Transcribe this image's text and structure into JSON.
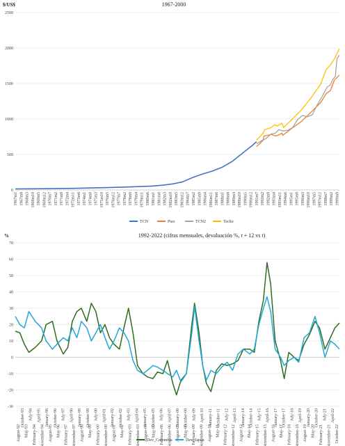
{
  "colors": {
    "tcn": "#4472C4",
    "piso": "#ED7D31",
    "tcn2": "#A5A5A5",
    "techo": "#FFC000",
    "colombia": "#2E6B1E",
    "japan": "#1FA8D8"
  },
  "chart_data": [
    {
      "type": "line",
      "unit": "$/US$",
      "title": "1967-2000",
      "ylim": [
        0,
        2500
      ],
      "yticks": [
        0,
        500,
        1000,
        1500,
        2000,
        2500
      ],
      "grid": true,
      "legend_position": "bottom",
      "x_start": "1967m1",
      "x_end": "1999m12",
      "xtick_labels": [
        "1967m1",
        "1967m8",
        "1968m3",
        "1968m10",
        "1969m5",
        "1969m12",
        "1970m7",
        "1971m2",
        "1971m9",
        "1972m4",
        "1972m11",
        "1973m6",
        "1974m1",
        "1974m8",
        "1975m3",
        "1975m10",
        "1976m5",
        "1976m12",
        "1977m7",
        "1978m2",
        "1978m9",
        "1979m4",
        "1979m11",
        "1980m6",
        "1981m1",
        "1981m8",
        "1982m3",
        "1982m10",
        "1983m5",
        "1983m12",
        "1984m7",
        "1985m2",
        "1985m9",
        "1986m4",
        "1986m11",
        "1987m6",
        "1988m1",
        "1988m8",
        "1989m3",
        "1989m10",
        "1990m5",
        "1990m12",
        "1991m7",
        "1992m2",
        "1992m9",
        "1993m4",
        "1993m11",
        "1994m6",
        "1995m1",
        "1995m8",
        "1996m3",
        "1996m10",
        "1997m5",
        "1997m12",
        "1998m7",
        "1999m2",
        "1999m9"
      ],
      "series": [
        {
          "name": "TCN",
          "color": "#4472C4",
          "points": [
            [
              "1967m1",
              15
            ],
            [
              "1970m1",
              18
            ],
            [
              "1973m1",
              23
            ],
            [
              "1976m1",
              32
            ],
            [
              "1978m1",
              40
            ],
            [
              "1980m1",
              50
            ],
            [
              "1981m1",
              56
            ],
            [
              "1982m1",
              68
            ],
            [
              "1983m1",
              85
            ],
            [
              "1984m1",
              115
            ],
            [
              "1985m1",
              175
            ],
            [
              "1986m1",
              225
            ],
            [
              "1987m1",
              265
            ],
            [
              "1988m1",
              320
            ],
            [
              "1989m1",
              400
            ],
            [
              "1990m1",
              510
            ],
            [
              "1991m1",
              620
            ],
            [
              "1991m7",
              680
            ]
          ]
        },
        {
          "name": "Piso",
          "color": "#ED7D31",
          "points": [
            [
              "1991m7",
              610
            ],
            [
              "1992m3",
              700
            ],
            [
              "1992m4",
              760
            ],
            [
              "1993m1",
              780
            ],
            [
              "1993m7",
              760
            ],
            [
              "1994m2",
              800
            ],
            [
              "1994m3",
              770
            ],
            [
              "1995m1",
              860
            ],
            [
              "1996m1",
              960
            ],
            [
              "1997m1",
              1090
            ],
            [
              "1998m1",
              1230
            ],
            [
              "1998m8",
              1360
            ],
            [
              "1999m1",
              1400
            ],
            [
              "1999m6",
              1550
            ],
            [
              "1999m12",
              1620
            ]
          ]
        },
        {
          "name": "TCN2",
          "color": "#A5A5A5",
          "points": [
            [
              "1991m7",
              650
            ],
            [
              "1992m2",
              700
            ],
            [
              "1992m6",
              720
            ],
            [
              "1993m1",
              790
            ],
            [
              "1993m6",
              800
            ],
            [
              "1993m10",
              850
            ],
            [
              "1994m3",
              830
            ],
            [
              "1994m9",
              840
            ],
            [
              "1995m3",
              880
            ],
            [
              "1995m9",
              990
            ],
            [
              "1996m3",
              1050
            ],
            [
              "1996m9",
              1030
            ],
            [
              "1997m3",
              1060
            ],
            [
              "1997m9",
              1200
            ],
            [
              "1998m3",
              1320
            ],
            [
              "1998m9",
              1450
            ],
            [
              "1999m1",
              1480
            ],
            [
              "1999m4",
              1560
            ],
            [
              "1999m7",
              1600
            ],
            [
              "1999m9",
              1850
            ],
            [
              "1999m12",
              1900
            ]
          ]
        },
        {
          "name": "Techo",
          "color": "#FFC000",
          "points": [
            [
              "1991m7",
              700
            ],
            [
              "1992m3",
              800
            ],
            [
              "1992m5",
              850
            ],
            [
              "1993m1",
              880
            ],
            [
              "1993m5",
              920
            ],
            [
              "1993m8",
              900
            ],
            [
              "1994m2",
              940
            ],
            [
              "1994m4",
              880
            ],
            [
              "1995m1",
              980
            ],
            [
              "1996m1",
              1120
            ],
            [
              "1997m1",
              1290
            ],
            [
              "1998m1",
              1490
            ],
            [
              "1998m8",
              1700
            ],
            [
              "1999m1",
              1760
            ],
            [
              "1999m6",
              1850
            ],
            [
              "1999m12",
              1990
            ]
          ]
        }
      ]
    },
    {
      "type": "line",
      "unit": "%",
      "title": "1992-2022 (cifras mensuales, devaluación %,",
      "title_italic": "t",
      "title_mid": "+ 12  vs",
      "title_end": ")",
      "ylim": [
        -30,
        70
      ],
      "yticks": [
        -30,
        -20,
        -10,
        0,
        10,
        20,
        30,
        40,
        50,
        60,
        70
      ],
      "grid": true,
      "legend_position": "bottom",
      "x_start": "1992-08",
      "x_end": "2022-06",
      "xtick_labels": [
        "August-92",
        "May-93",
        "February-94",
        "November-94",
        "August-95",
        "May-96",
        "February-97",
        "November-97",
        "August-98",
        "May-99",
        "February-00",
        "November-00",
        "August-01",
        "May-02",
        "February-03",
        "November-03",
        "August-04",
        "May-05",
        "February-06",
        "November-06",
        "August-07",
        "May-08",
        "February-09",
        "November-09",
        "August-10",
        "May-11",
        "February-12",
        "November-12",
        "August-13",
        "May-14",
        "February-15",
        "November-15",
        "August-16",
        "May-17",
        "February-18",
        "November-18",
        "August-19",
        "May-20",
        "February-21",
        "November-21",
        "October-22"
      ],
      "xtick_labels_secondary": [
        "October-93",
        "July-94",
        "April-95",
        "January-96",
        "October-96",
        "July-97",
        "April-98",
        "January-99",
        "October-99",
        "July-00",
        "April-01",
        "January-02",
        "October-02",
        "July-03",
        "April-04",
        "January-05",
        "October-05",
        "July-06",
        "April-07",
        "January-08",
        "October-08",
        "July-09",
        "April-10",
        "January-11",
        "October-11",
        "July-12",
        "April-13",
        "January-14",
        "October-14",
        "July-15",
        "April-16",
        "January-17",
        "October-17",
        "July-18",
        "April-19",
        "January-20",
        "October-20",
        "July-21",
        "April-22"
      ],
      "series": [
        {
          "name": "Dev_Colombia",
          "color": "#2E6B1E",
          "points": [
            [
              "1992-08",
              16
            ],
            [
              "1993-01",
              15
            ],
            [
              "1993-06",
              8
            ],
            [
              "1993-11",
              3
            ],
            [
              "1994-06",
              6
            ],
            [
              "1995-01",
              10
            ],
            [
              "1995-06",
              20
            ],
            [
              "1996-01",
              22
            ],
            [
              "1996-06",
              10
            ],
            [
              "1997-01",
              2
            ],
            [
              "1997-06",
              6
            ],
            [
              "1997-11",
              22
            ],
            [
              "1998-04",
              28
            ],
            [
              "1998-09",
              30
            ],
            [
              "1999-03",
              22
            ],
            [
              "1999-08",
              33
            ],
            [
              "2000-01",
              28
            ],
            [
              "2000-06",
              15
            ],
            [
              "2000-11",
              20
            ],
            [
              "2001-04",
              12
            ],
            [
              "2001-09",
              8
            ],
            [
              "2002-03",
              5
            ],
            [
              "2002-08",
              18
            ],
            [
              "2003-01",
              30
            ],
            [
              "2003-06",
              15
            ],
            [
              "2003-11",
              -5
            ],
            [
              "2004-05",
              -10
            ],
            [
              "2004-10",
              -12
            ],
            [
              "2005-04",
              -13
            ],
            [
              "2005-09",
              -9
            ],
            [
              "2006-03",
              -10
            ],
            [
              "2006-08",
              -2
            ],
            [
              "2007-02",
              -16
            ],
            [
              "2007-06",
              -23
            ],
            [
              "2007-11",
              -14
            ],
            [
              "2008-05",
              -10
            ],
            [
              "2008-11",
              20
            ],
            [
              "2009-02",
              33
            ],
            [
              "2009-07",
              15
            ],
            [
              "2009-11",
              -5
            ],
            [
              "2010-03",
              -16
            ],
            [
              "2010-08",
              -21
            ],
            [
              "2011-02",
              -8
            ],
            [
              "2011-08",
              -4
            ],
            [
              "2012-02",
              -5
            ],
            [
              "2012-08",
              -4
            ],
            [
              "2013-02",
              -2
            ],
            [
              "2013-08",
              5
            ],
            [
              "2014-03",
              5
            ],
            [
              "2014-08",
              3
            ],
            [
              "2015-01",
              22
            ],
            [
              "2015-06",
              35
            ],
            [
              "2015-10",
              58
            ],
            [
              "2016-02",
              45
            ],
            [
              "2016-07",
              10
            ],
            [
              "2017-01",
              -2
            ],
            [
              "2017-05",
              -13
            ],
            [
              "2017-10",
              3
            ],
            [
              "2018-04",
              0
            ],
            [
              "2018-09",
              -2
            ],
            [
              "2019-03",
              8
            ],
            [
              "2019-09",
              14
            ],
            [
              "2020-03",
              22
            ],
            [
              "2020-08",
              18
            ],
            [
              "2021-02",
              5
            ],
            [
              "2021-08",
              12
            ],
            [
              "2022-01",
              18
            ],
            [
              "2022-06",
              21
            ]
          ]
        },
        {
          "name": "Dev_Japan",
          "color": "#1FA8D8",
          "points": [
            [
              "1992-08",
              25
            ],
            [
              "1993-01",
              20
            ],
            [
              "1993-06",
              18
            ],
            [
              "1993-11",
              28
            ],
            [
              "1994-06",
              22
            ],
            [
              "1995-01",
              18
            ],
            [
              "1995-06",
              10
            ],
            [
              "1996-01",
              5
            ],
            [
              "1996-06",
              8
            ],
            [
              "1997-01",
              12
            ],
            [
              "1997-06",
              10
            ],
            [
              "1997-11",
              18
            ],
            [
              "1998-04",
              12
            ],
            [
              "1998-09",
              22
            ],
            [
              "1999-03",
              18
            ],
            [
              "1999-08",
              10
            ],
            [
              "2000-01",
              15
            ],
            [
              "2000-06",
              20
            ],
            [
              "2000-11",
              12
            ],
            [
              "2001-04",
              5
            ],
            [
              "2001-09",
              10
            ],
            [
              "2002-03",
              18
            ],
            [
              "2002-08",
              15
            ],
            [
              "2003-01",
              10
            ],
            [
              "2003-06",
              -2
            ],
            [
              "2003-11",
              -8
            ],
            [
              "2004-05",
              -10
            ],
            [
              "2004-10",
              -8
            ],
            [
              "2005-04",
              -5
            ],
            [
              "2005-09",
              -6
            ],
            [
              "2006-03",
              -8
            ],
            [
              "2006-08",
              -10
            ],
            [
              "2007-02",
              -12
            ],
            [
              "2007-06",
              -8
            ],
            [
              "2007-11",
              -15
            ],
            [
              "2008-05",
              -10
            ],
            [
              "2008-11",
              15
            ],
            [
              "2009-02",
              31
            ],
            [
              "2009-07",
              10
            ],
            [
              "2009-11",
              -5
            ],
            [
              "2010-03",
              -14
            ],
            [
              "2010-08",
              -8
            ],
            [
              "2011-02",
              -10
            ],
            [
              "2011-08",
              -6
            ],
            [
              "2012-02",
              -3
            ],
            [
              "2012-08",
              -8
            ],
            [
              "2013-02",
              2
            ],
            [
              "2013-08",
              5
            ],
            [
              "2014-03",
              2
            ],
            [
              "2014-08",
              5
            ],
            [
              "2015-01",
              20
            ],
            [
              "2015-06",
              30
            ],
            [
              "2015-10",
              37
            ],
            [
              "2016-02",
              28
            ],
            [
              "2016-07",
              5
            ],
            [
              "2017-01",
              0
            ],
            [
              "2017-05",
              -5
            ],
            [
              "2017-10",
              -2
            ],
            [
              "2018-04",
              0
            ],
            [
              "2018-09",
              -3
            ],
            [
              "2019-03",
              12
            ],
            [
              "2019-09",
              15
            ],
            [
              "2020-03",
              25
            ],
            [
              "2020-08",
              15
            ],
            [
              "2021-02",
              0
            ],
            [
              "2021-08",
              10
            ],
            [
              "2022-01",
              8
            ],
            [
              "2022-06",
              5
            ]
          ]
        }
      ]
    }
  ]
}
